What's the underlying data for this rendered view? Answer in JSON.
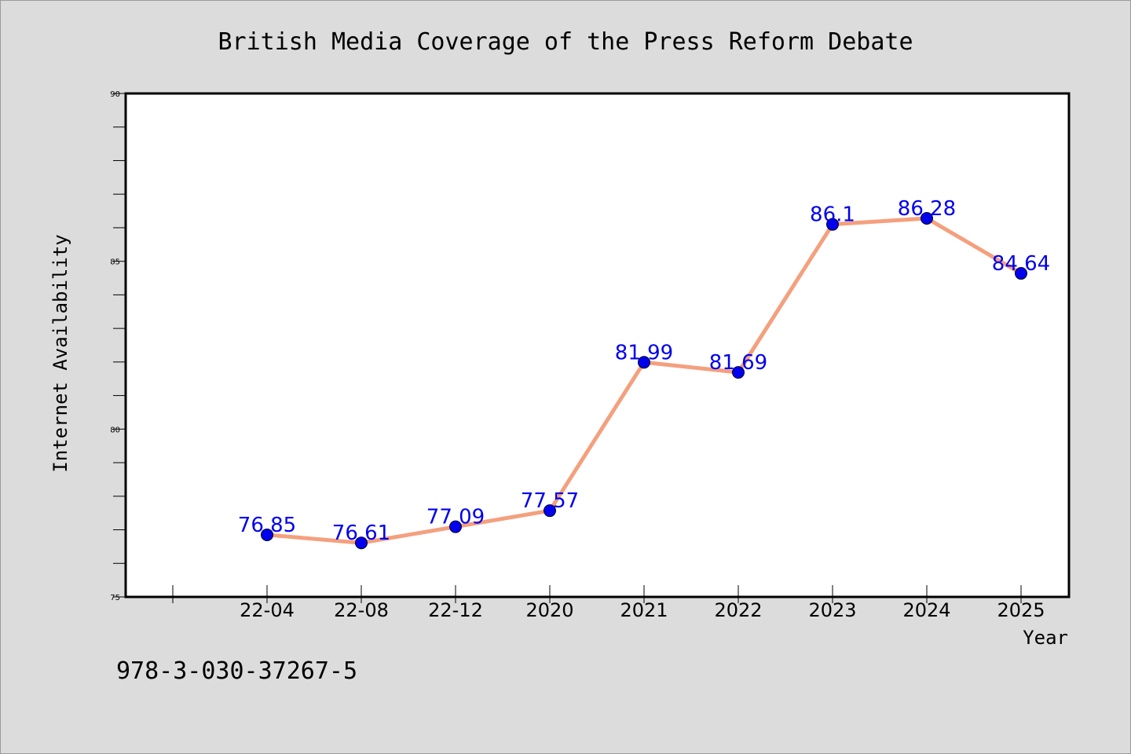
{
  "chart_data": {
    "type": "line",
    "title": "British Media Coverage of the Press Reform Debate",
    "xlabel": "Year",
    "ylabel": "Internet Availability",
    "categories": [
      "22-04",
      "22-08",
      "22-12",
      "2020",
      "2021",
      "2022",
      "2023",
      "2024",
      "2025"
    ],
    "series": [
      {
        "values": [
          76.85,
          76.61,
          77.09,
          77.57,
          81.99,
          81.69,
          86.1,
          86.28,
          84.64
        ],
        "labels": [
          "76.85",
          "76.61",
          "77.09",
          "77.57",
          "81.99",
          "81.69",
          "86.1",
          "86.28",
          "84.64"
        ]
      }
    ],
    "ylim": [
      75,
      90
    ],
    "yticks": [
      "75",
      "80",
      "85",
      "90"
    ],
    "grid": false,
    "colors": {
      "line": "#f4a07e",
      "marker": "#0000ee",
      "label": "#0000ee",
      "background": "#dcdcdc",
      "plot_background": "#ffffff"
    }
  },
  "footer": {
    "isbn": "978-3-030-37267-5"
  }
}
